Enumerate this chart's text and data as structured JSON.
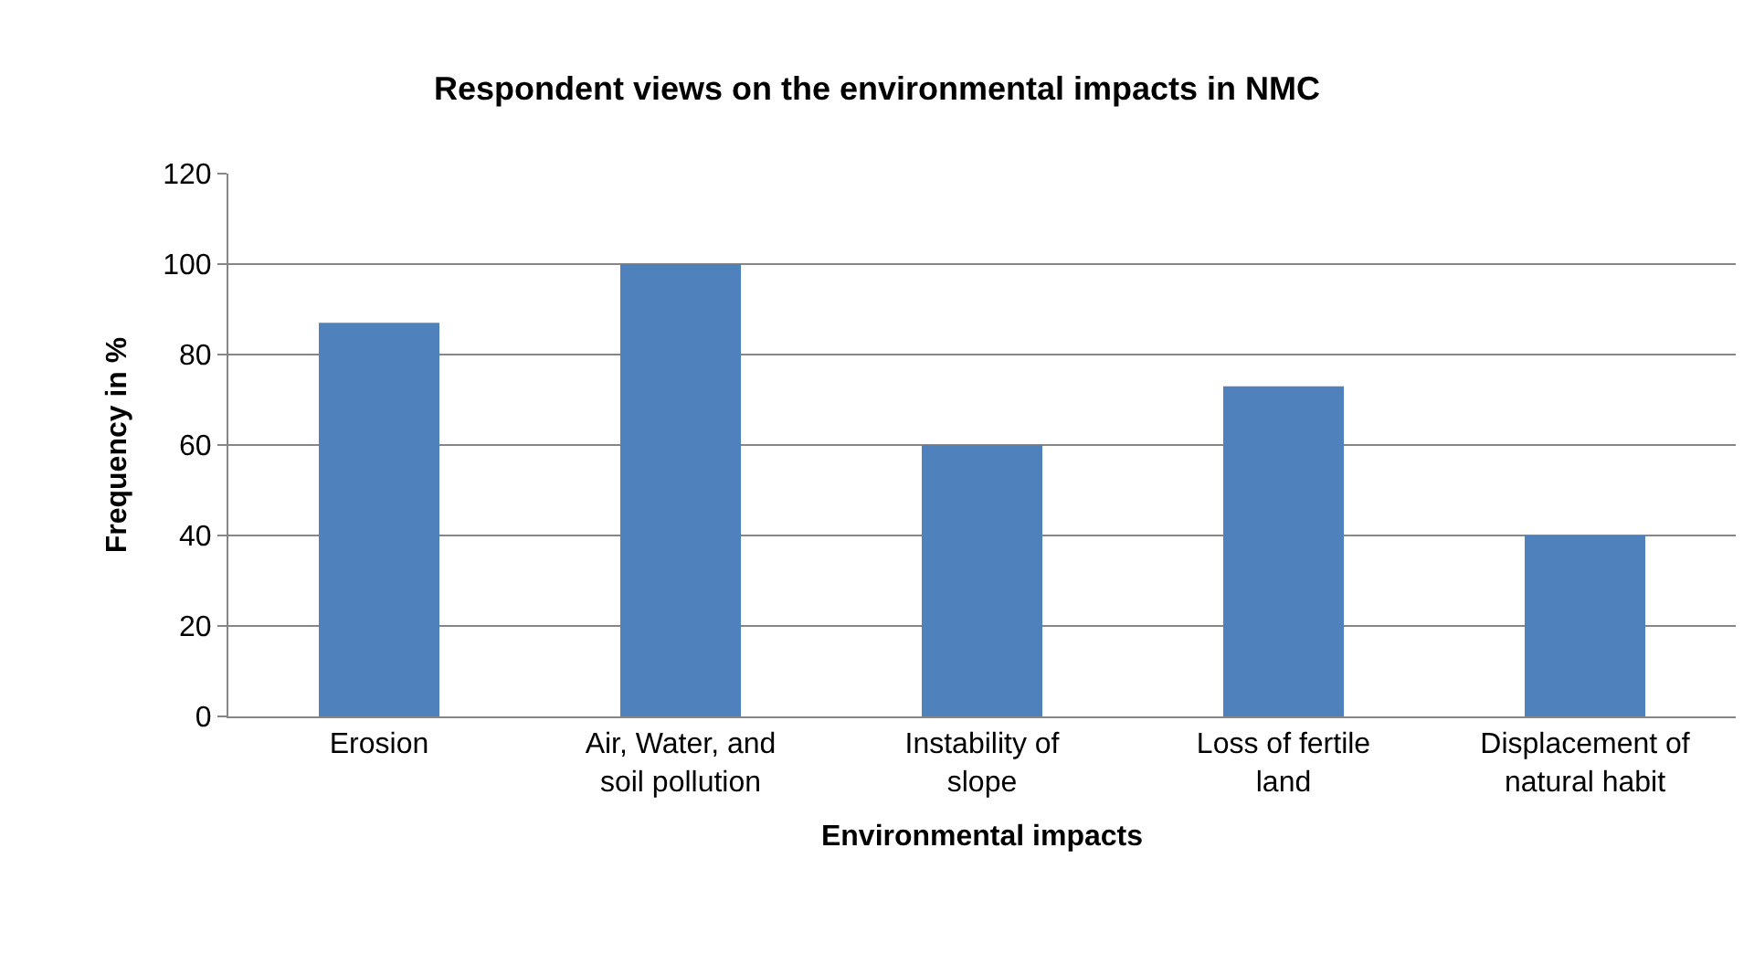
{
  "chart_data": {
    "type": "bar",
    "title": "Respondent views on the environmental impacts in NMC",
    "xlabel": "Environmental impacts",
    "ylabel": "Frequency in %",
    "categories": [
      "Erosion",
      "Air, Water, and soil pollution",
      "Instability of slope",
      "Loss of fertile land",
      "Displacement of natural habit"
    ],
    "values": [
      87,
      100,
      60,
      73,
      40
    ],
    "color": "#4f81bd",
    "ylim": [
      0,
      120
    ],
    "yticks": [
      0,
      20,
      40,
      60,
      80,
      100,
      120
    ],
    "grid": "y",
    "legend": false
  }
}
